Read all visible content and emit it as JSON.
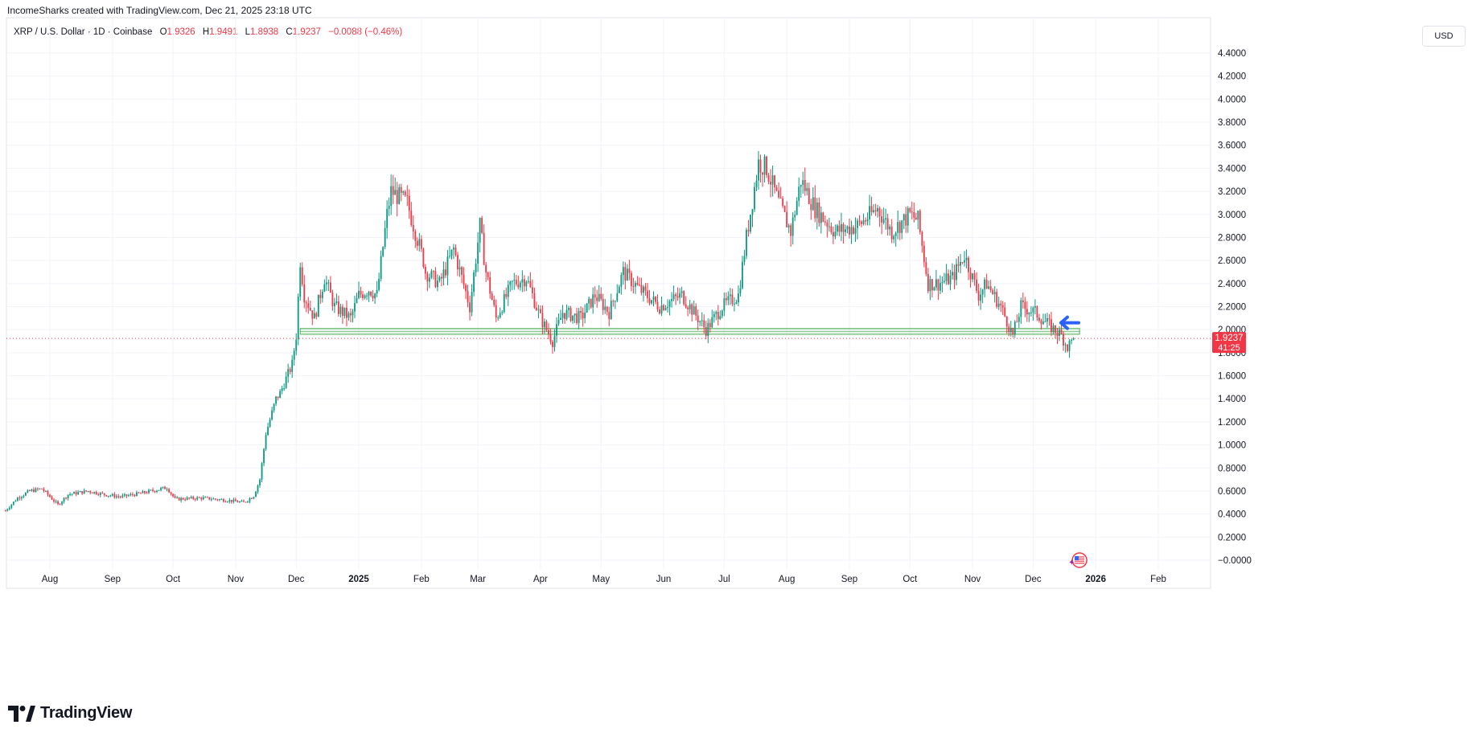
{
  "header": {
    "attribution": "IncomeSharks created with TradingView.com, Dec 21, 2025 23:18 UTC"
  },
  "legend": {
    "symbol": "XRP / U.S. Dollar · 1D · Coinbase",
    "o_label": "O",
    "o_value": "1.9326",
    "h_label": "H",
    "h_value": "1.9491",
    "l_label": "L",
    "l_value": "1.8938",
    "c_label": "C",
    "c_value": "1.9237",
    "change": "−0.0088 (−0.46%)"
  },
  "currency_button": "USD",
  "price_tag": {
    "price": "1.9237",
    "countdown": "41:25"
  },
  "brand": {
    "name": "TradingView"
  },
  "colors": {
    "up": "#089981",
    "down": "#f23645",
    "zone": "#4caf50"
  },
  "chart_data": {
    "type": "candlestick",
    "ylim": [
      -0.1,
      4.55
    ],
    "y_ticks": [
      "4.4000",
      "4.2000",
      "4.0000",
      "3.8000",
      "3.6000",
      "3.4000",
      "3.2000",
      "3.0000",
      "2.8000",
      "2.6000",
      "2.4000",
      "2.2000",
      "2.0000",
      "1.8000",
      "1.6000",
      "1.4000",
      "1.2000",
      "1.0000",
      "0.8000",
      "0.6000",
      "0.4000",
      "0.2000",
      "−0.0000"
    ],
    "x_ticks": [
      {
        "label": "Aug",
        "date": "2024-08-01"
      },
      {
        "label": "Sep",
        "date": "2024-09-01"
      },
      {
        "label": "Oct",
        "date": "2024-10-01"
      },
      {
        "label": "Nov",
        "date": "2024-11-01"
      },
      {
        "label": "Dec",
        "date": "2024-12-01"
      },
      {
        "label": "2025",
        "date": "2025-01-01",
        "bold": true
      },
      {
        "label": "Feb",
        "date": "2025-02-01"
      },
      {
        "label": "Mar",
        "date": "2025-03-01"
      },
      {
        "label": "Apr",
        "date": "2025-04-01"
      },
      {
        "label": "May",
        "date": "2025-05-01"
      },
      {
        "label": "Jun",
        "date": "2025-06-01"
      },
      {
        "label": "Jul",
        "date": "2025-07-01"
      },
      {
        "label": "Aug",
        "date": "2025-08-01"
      },
      {
        "label": "Sep",
        "date": "2025-09-01"
      },
      {
        "label": "Oct",
        "date": "2025-10-01"
      },
      {
        "label": "Nov",
        "date": "2025-11-01"
      },
      {
        "label": "Dec",
        "date": "2025-12-01"
      },
      {
        "label": "2026",
        "date": "2026-01-01",
        "bold": true
      },
      {
        "label": "Feb",
        "date": "2026-02-01"
      }
    ],
    "date_range": [
      "2024-07-10",
      "2025-12-21"
    ],
    "series": [
      {
        "values": [
          [
            "2024-07-10",
            0.43
          ],
          [
            "2024-07-16",
            0.54
          ],
          [
            "2024-07-22",
            0.6
          ],
          [
            "2024-07-28",
            0.62
          ],
          [
            "2024-08-05",
            0.48
          ],
          [
            "2024-08-10",
            0.57
          ],
          [
            "2024-08-20",
            0.6
          ],
          [
            "2024-08-28",
            0.57
          ],
          [
            "2024-09-05",
            0.55
          ],
          [
            "2024-09-15",
            0.58
          ],
          [
            "2024-09-28",
            0.63
          ],
          [
            "2024-10-02",
            0.53
          ],
          [
            "2024-10-15",
            0.54
          ],
          [
            "2024-10-28",
            0.52
          ],
          [
            "2024-11-05",
            0.5
          ],
          [
            "2024-11-10",
            0.56
          ],
          [
            "2024-11-13",
            0.7
          ],
          [
            "2024-11-16",
            1.1
          ],
          [
            "2024-11-21",
            1.4
          ],
          [
            "2024-11-23",
            1.45
          ],
          [
            "2024-11-29",
            1.7
          ],
          [
            "2024-12-01",
            1.95
          ],
          [
            "2024-12-03",
            2.6
          ],
          [
            "2024-12-05",
            2.3
          ],
          [
            "2024-12-10",
            2.1
          ],
          [
            "2024-12-15",
            2.45
          ],
          [
            "2024-12-20",
            2.2
          ],
          [
            "2024-12-28",
            2.1
          ],
          [
            "2025-01-01",
            2.3
          ],
          [
            "2025-01-06",
            2.35
          ],
          [
            "2025-01-10",
            2.3
          ],
          [
            "2025-01-15",
            3.0
          ],
          [
            "2025-01-17",
            3.2
          ],
          [
            "2025-01-25",
            3.1
          ],
          [
            "2025-02-02",
            2.6
          ],
          [
            "2025-02-03",
            2.5
          ],
          [
            "2025-02-10",
            2.4
          ],
          [
            "2025-02-17",
            2.7
          ],
          [
            "2025-02-25",
            2.2
          ],
          [
            "2025-03-02",
            2.9
          ],
          [
            "2025-03-05",
            2.5
          ],
          [
            "2025-03-10",
            2.1
          ],
          [
            "2025-03-18",
            2.4
          ],
          [
            "2025-03-25",
            2.45
          ],
          [
            "2025-04-01",
            2.1
          ],
          [
            "2025-04-07",
            1.9
          ],
          [
            "2025-04-12",
            2.15
          ],
          [
            "2025-04-21",
            2.1
          ],
          [
            "2025-04-28",
            2.3
          ],
          [
            "2025-05-05",
            2.15
          ],
          [
            "2025-05-12",
            2.5
          ],
          [
            "2025-05-20",
            2.35
          ],
          [
            "2025-05-30",
            2.2
          ],
          [
            "2025-06-10",
            2.3
          ],
          [
            "2025-06-22",
            2.0
          ],
          [
            "2025-06-30",
            2.2
          ],
          [
            "2025-07-08",
            2.3
          ],
          [
            "2025-07-12",
            2.8
          ],
          [
            "2025-07-18",
            3.45
          ],
          [
            "2025-07-22",
            3.4
          ],
          [
            "2025-07-28",
            3.1
          ],
          [
            "2025-08-03",
            2.85
          ],
          [
            "2025-08-08",
            3.3
          ],
          [
            "2025-08-15",
            3.05
          ],
          [
            "2025-08-25",
            2.85
          ],
          [
            "2025-09-05",
            2.9
          ],
          [
            "2025-09-15",
            3.05
          ],
          [
            "2025-09-22",
            2.85
          ],
          [
            "2025-10-01",
            3.0
          ],
          [
            "2025-10-05",
            2.95
          ],
          [
            "2025-10-10",
            2.4
          ],
          [
            "2025-10-15",
            2.4
          ],
          [
            "2025-10-22",
            2.45
          ],
          [
            "2025-10-28",
            2.65
          ],
          [
            "2025-11-04",
            2.3
          ],
          [
            "2025-11-08",
            2.4
          ],
          [
            "2025-11-15",
            2.2
          ],
          [
            "2025-11-21",
            1.95
          ],
          [
            "2025-11-25",
            2.2
          ],
          [
            "2025-12-02",
            2.15
          ],
          [
            "2025-12-08",
            2.05
          ],
          [
            "2025-12-15",
            1.95
          ],
          [
            "2025-12-18",
            1.85
          ],
          [
            "2025-12-21",
            1.92
          ]
        ]
      }
    ],
    "last_price": 1.9237,
    "support_zone": [
      1.96,
      2.01
    ]
  }
}
